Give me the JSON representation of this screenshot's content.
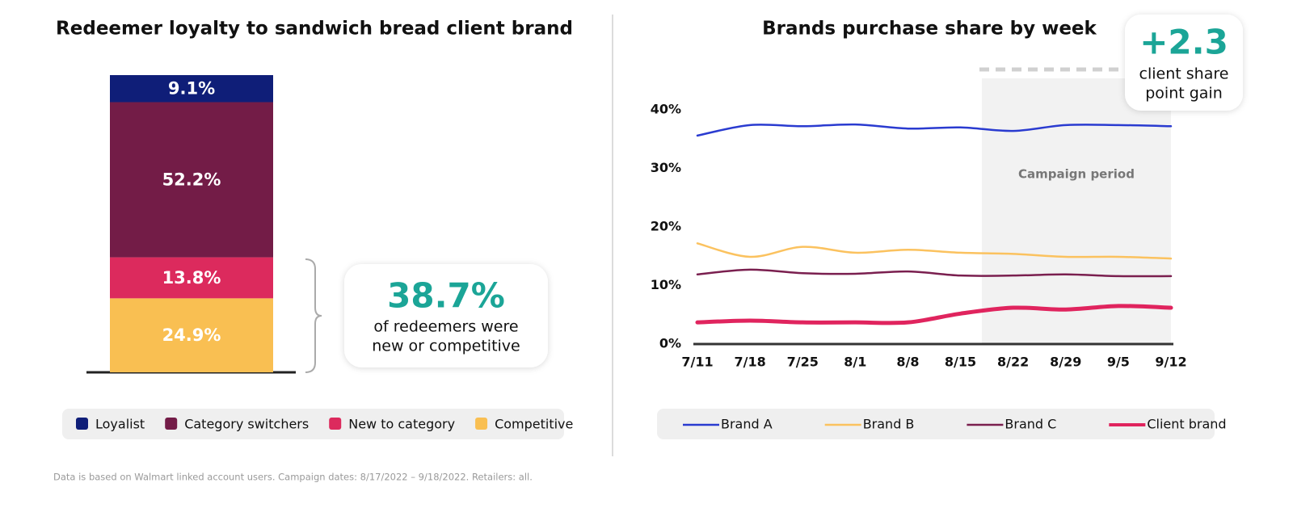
{
  "chart_data": [
    {
      "type": "bar",
      "stacked": true,
      "title": "Redeemer loyalty to sandwich bread client brand",
      "categories": [
        null
      ],
      "series": [
        {
          "name": "Loyalist",
          "color": "#0f1e78",
          "values": [
            9.1
          ],
          "value_labels": [
            "9.1%"
          ]
        },
        {
          "name": "Category switchers",
          "color": "#731c47",
          "values": [
            52.2
          ],
          "value_labels": [
            "52.2%"
          ]
        },
        {
          "name": "New to category",
          "color": "#dc2a5d",
          "values": [
            13.8
          ],
          "value_labels": [
            "13.8%"
          ]
        },
        {
          "name": "Competitive",
          "color": "#f9bf52",
          "values": [
            24.9
          ],
          "value_labels": [
            "24.9%"
          ]
        }
      ],
      "annotation": {
        "headline": "38.7%",
        "text": [
          "of redeemers were",
          "new or competitive"
        ]
      }
    },
    {
      "type": "line",
      "title": "Brands purchase share by week",
      "categories": [
        "7/11",
        "7/18",
        "7/25",
        "8/1",
        "8/8",
        "8/15",
        "8/22",
        "8/29",
        "9/5",
        "9/12"
      ],
      "series": [
        {
          "name": "Brand A",
          "color": "#2a3bd0",
          "values": [
            35.6,
            37.4,
            37.2,
            37.5,
            36.8,
            37.0,
            36.4,
            37.4,
            37.4,
            37.2
          ]
        },
        {
          "name": "Brand B",
          "color": "#fbc25f",
          "values": [
            17.2,
            14.9,
            16.6,
            15.6,
            16.1,
            15.6,
            15.4,
            14.9,
            14.9,
            14.6
          ]
        },
        {
          "name": "Brand C",
          "color": "#7a1f4f",
          "values": [
            11.9,
            12.7,
            12.1,
            12.0,
            12.4,
            11.7,
            11.7,
            11.9,
            11.6,
            11.6
          ]
        },
        {
          "name": "Client brand",
          "color": "#e0245e",
          "values": [
            3.7,
            4.0,
            3.7,
            3.7,
            3.7,
            5.2,
            6.2,
            5.9,
            6.5,
            6.2
          ]
        }
      ],
      "ylim": [
        0,
        45
      ],
      "yticks": [
        {
          "value": 0,
          "label": "0%"
        },
        {
          "value": 10,
          "label": "10%"
        },
        {
          "value": 20,
          "label": "20%"
        },
        {
          "value": 30,
          "label": "30%"
        },
        {
          "value": 40,
          "label": "40%"
        }
      ],
      "grid": false,
      "annotations": {
        "shaded_region": "Campaign period",
        "headline": "+2.3",
        "text": [
          "client share",
          "point gain"
        ]
      }
    }
  ],
  "footnote": "Data is based on Walmart linked account users. Campaign dates: 8/17/2022 – 9/18/2022. Retailers: all."
}
